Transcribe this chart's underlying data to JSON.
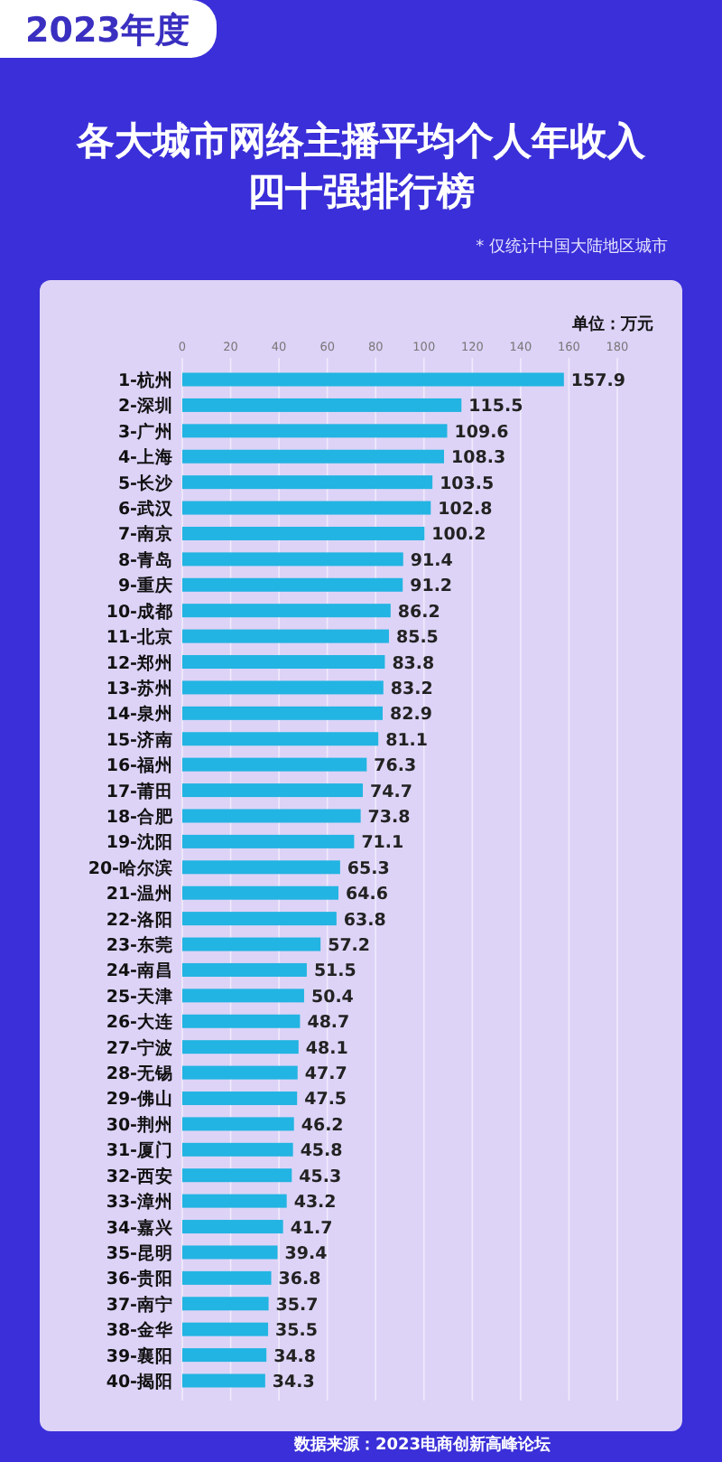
{
  "chart_data": {
    "type": "bar",
    "orientation": "horizontal",
    "title": "各大城市网络主播平均个人年收入四十强排行榜",
    "subtitle": "2023年度",
    "xlabel": "单位：万元",
    "annotations": [
      "* 仅统计中国大陆地区城市",
      "数据来源：2023电商创新高峰论坛"
    ],
    "categories": [
      "1-杭州",
      "2-深圳",
      "3-广州",
      "4-上海",
      "5-长沙",
      "6-武汉",
      "7-南京",
      "8-青岛",
      "9-重庆",
      "10-成都",
      "11-北京",
      "12-郑州",
      "13-苏州",
      "14-泉州",
      "15-济南",
      "16-福州",
      "17-莆田",
      "18-合肥",
      "19-沈阳",
      "20-哈尔滨",
      "21-温州",
      "22-洛阳",
      "23-东莞",
      "24-南昌",
      "25-天津",
      "26-大连",
      "27-宁波",
      "28-无锡",
      "29-佛山",
      "30-荆州",
      "31-厦门",
      "32-西安",
      "33-漳州",
      "34-嘉兴",
      "35-昆明",
      "36-贵阳",
      "37-南宁",
      "38-金华",
      "39-襄阳",
      "40-揭阳"
    ],
    "values": [
      157.9,
      115.5,
      109.6,
      108.3,
      103.5,
      102.8,
      100.2,
      91.4,
      91.2,
      86.2,
      85.5,
      83.8,
      83.2,
      82.9,
      81.1,
      76.3,
      74.7,
      73.8,
      71.1,
      65.3,
      64.6,
      63.8,
      57.2,
      51.5,
      50.4,
      48.7,
      48.1,
      47.7,
      47.5,
      46.2,
      45.8,
      45.3,
      43.2,
      41.7,
      39.4,
      36.8,
      35.7,
      35.5,
      34.8,
      34.3
    ],
    "color": "#22b4e2",
    "xlim": [
      0,
      180
    ],
    "xticks": [
      0,
      20,
      40,
      60,
      80,
      100,
      120,
      140,
      160,
      180
    ],
    "grid": "x",
    "data_labels": true
  }
}
